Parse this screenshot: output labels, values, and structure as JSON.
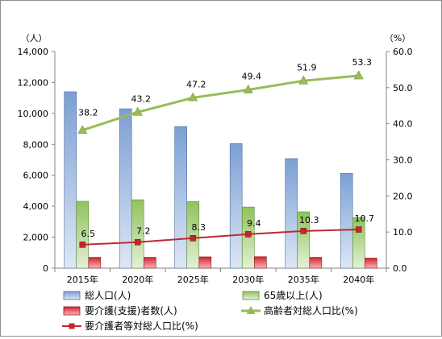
{
  "chart_data": {
    "type": "bar",
    "categories": [
      "2015年",
      "2020年",
      "2025年",
      "2030年",
      "2035年",
      "2040年"
    ],
    "left_axis": {
      "unit_label": "（人）",
      "ylim": [
        0,
        14000
      ],
      "ticks": [
        "0",
        "2,000",
        "4,000",
        "6,000",
        "8,000",
        "10,000",
        "12,000",
        "14,000"
      ]
    },
    "right_axis": {
      "unit_label": "（%）",
      "ylim": [
        0,
        60
      ],
      "ticks": [
        "0.0",
        "10.0",
        "20.0",
        "30.0",
        "40.0",
        "50.0",
        "60.0"
      ]
    },
    "grid": false,
    "legend_position": "bottom",
    "series": [
      {
        "name": "総人口(人)",
        "kind": "bar",
        "axis": "left",
        "color": "#7b9fd4",
        "values": [
          11400,
          10300,
          9150,
          8050,
          7080,
          6130
        ]
      },
      {
        "name": "65歳以上(人)",
        "kind": "bar",
        "axis": "left",
        "color": "#8fc35c",
        "values": [
          4320,
          4420,
          4300,
          3950,
          3640,
          3270
        ]
      },
      {
        "name": "要介護(支援)者数(人)",
        "kind": "bar",
        "axis": "left",
        "color": "#d8202a",
        "values": [
          700,
          700,
          730,
          740,
          700,
          650
        ]
      },
      {
        "name": "高齢者対総人口比(%)",
        "kind": "line",
        "axis": "right",
        "color": "#9bbb59",
        "marker": "triangle",
        "values": [
          38.2,
          43.2,
          47.2,
          49.4,
          51.9,
          53.3
        ],
        "labels": [
          "38.2",
          "43.2",
          "47.2",
          "49.4",
          "51.9",
          "53.3"
        ]
      },
      {
        "name": "要介護者等対総人口比(%)",
        "kind": "line",
        "axis": "right",
        "color": "#c0282d",
        "marker": "square",
        "values": [
          6.5,
          7.2,
          8.3,
          9.4,
          10.3,
          10.7
        ],
        "labels": [
          "6.5",
          "7.2",
          "8.3",
          "9.4",
          "10.3",
          "10.7"
        ]
      }
    ]
  }
}
